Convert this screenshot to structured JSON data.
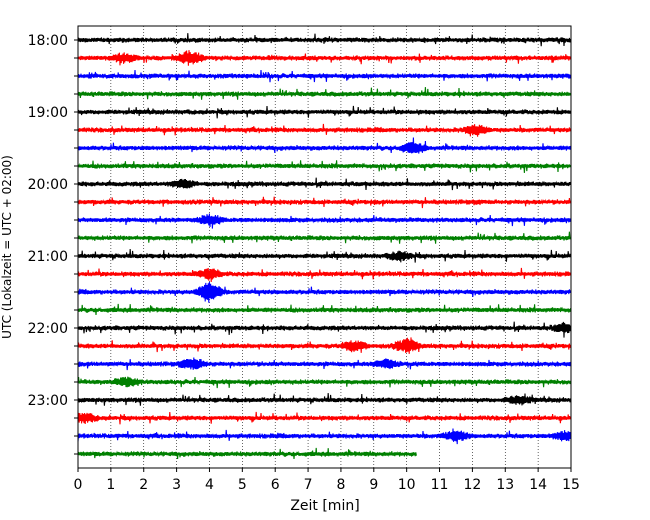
{
  "chart_data": {
    "type": "line",
    "subtype": "helicorder",
    "xlabel": "Zeit  [min]",
    "ylabel": "UTC (Lokalzeit = UTC + 02:00)",
    "x_ticks": [
      "0",
      "1",
      "2",
      "3",
      "4",
      "5",
      "6",
      "7",
      "8",
      "9",
      "10",
      "11",
      "12",
      "13",
      "14",
      "15"
    ],
    "xlim": [
      0,
      15
    ],
    "y_ticks": [
      "18:00",
      "19:00",
      "20:00",
      "21:00",
      "22:00",
      "23:00"
    ],
    "trace_interval_min": 15,
    "grid": "vertical dotted at each minute",
    "trace_colors": [
      "#000000",
      "#ff0000",
      "#0000ff",
      "#008000"
    ],
    "traces": [
      {
        "start": "18:00",
        "end_min": 15,
        "events": []
      },
      {
        "start": "18:15",
        "end_min": 15,
        "events": [
          {
            "t": 1.4,
            "amp": 0.5
          },
          {
            "t": 3.4,
            "amp": 0.8
          }
        ]
      },
      {
        "start": "18:30",
        "end_min": 15,
        "events": []
      },
      {
        "start": "18:45",
        "end_min": 15,
        "events": []
      },
      {
        "start": "19:00",
        "end_min": 15,
        "events": []
      },
      {
        "start": "19:15",
        "end_min": 15,
        "events": [
          {
            "t": 12.1,
            "amp": 0.6
          }
        ]
      },
      {
        "start": "19:30",
        "end_min": 15,
        "events": [
          {
            "t": 10.2,
            "amp": 0.6
          }
        ]
      },
      {
        "start": "19:45",
        "end_min": 15,
        "events": []
      },
      {
        "start": "20:00",
        "end_min": 15,
        "events": [
          {
            "t": 3.2,
            "amp": 0.5
          }
        ]
      },
      {
        "start": "20:15",
        "end_min": 15,
        "events": []
      },
      {
        "start": "20:30",
        "end_min": 15,
        "events": [
          {
            "t": 4.0,
            "amp": 0.6
          }
        ]
      },
      {
        "start": "20:45",
        "end_min": 15,
        "events": []
      },
      {
        "start": "21:00",
        "end_min": 15,
        "events": [
          {
            "t": 9.8,
            "amp": 0.5
          }
        ]
      },
      {
        "start": "21:15",
        "end_min": 15,
        "events": [
          {
            "t": 4.0,
            "amp": 0.6
          }
        ]
      },
      {
        "start": "21:30",
        "end_min": 15,
        "events": [
          {
            "t": 4.0,
            "amp": 1.2
          }
        ]
      },
      {
        "start": "21:45",
        "end_min": 15,
        "events": []
      },
      {
        "start": "22:00",
        "end_min": 15,
        "events": [
          {
            "t": 14.8,
            "amp": 0.5
          }
        ]
      },
      {
        "start": "22:15",
        "end_min": 15,
        "events": [
          {
            "t": 10.0,
            "amp": 0.8
          },
          {
            "t": 8.4,
            "amp": 0.6
          }
        ]
      },
      {
        "start": "22:30",
        "end_min": 15,
        "events": [
          {
            "t": 3.5,
            "amp": 0.6
          },
          {
            "t": 9.4,
            "amp": 0.5
          }
        ]
      },
      {
        "start": "22:45",
        "end_min": 15,
        "events": [
          {
            "t": 1.5,
            "amp": 0.5
          }
        ]
      },
      {
        "start": "23:00",
        "end_min": 15,
        "events": [
          {
            "t": 13.4,
            "amp": 0.5
          }
        ]
      },
      {
        "start": "23:15",
        "end_min": 15,
        "events": [
          {
            "t": 0.2,
            "amp": 0.5
          }
        ]
      },
      {
        "start": "23:30",
        "end_min": 15,
        "events": [
          {
            "t": 11.5,
            "amp": 0.6
          },
          {
            "t": 14.8,
            "amp": 0.5
          }
        ]
      },
      {
        "start": "23:45",
        "end_min": 10.3,
        "events": []
      }
    ]
  }
}
